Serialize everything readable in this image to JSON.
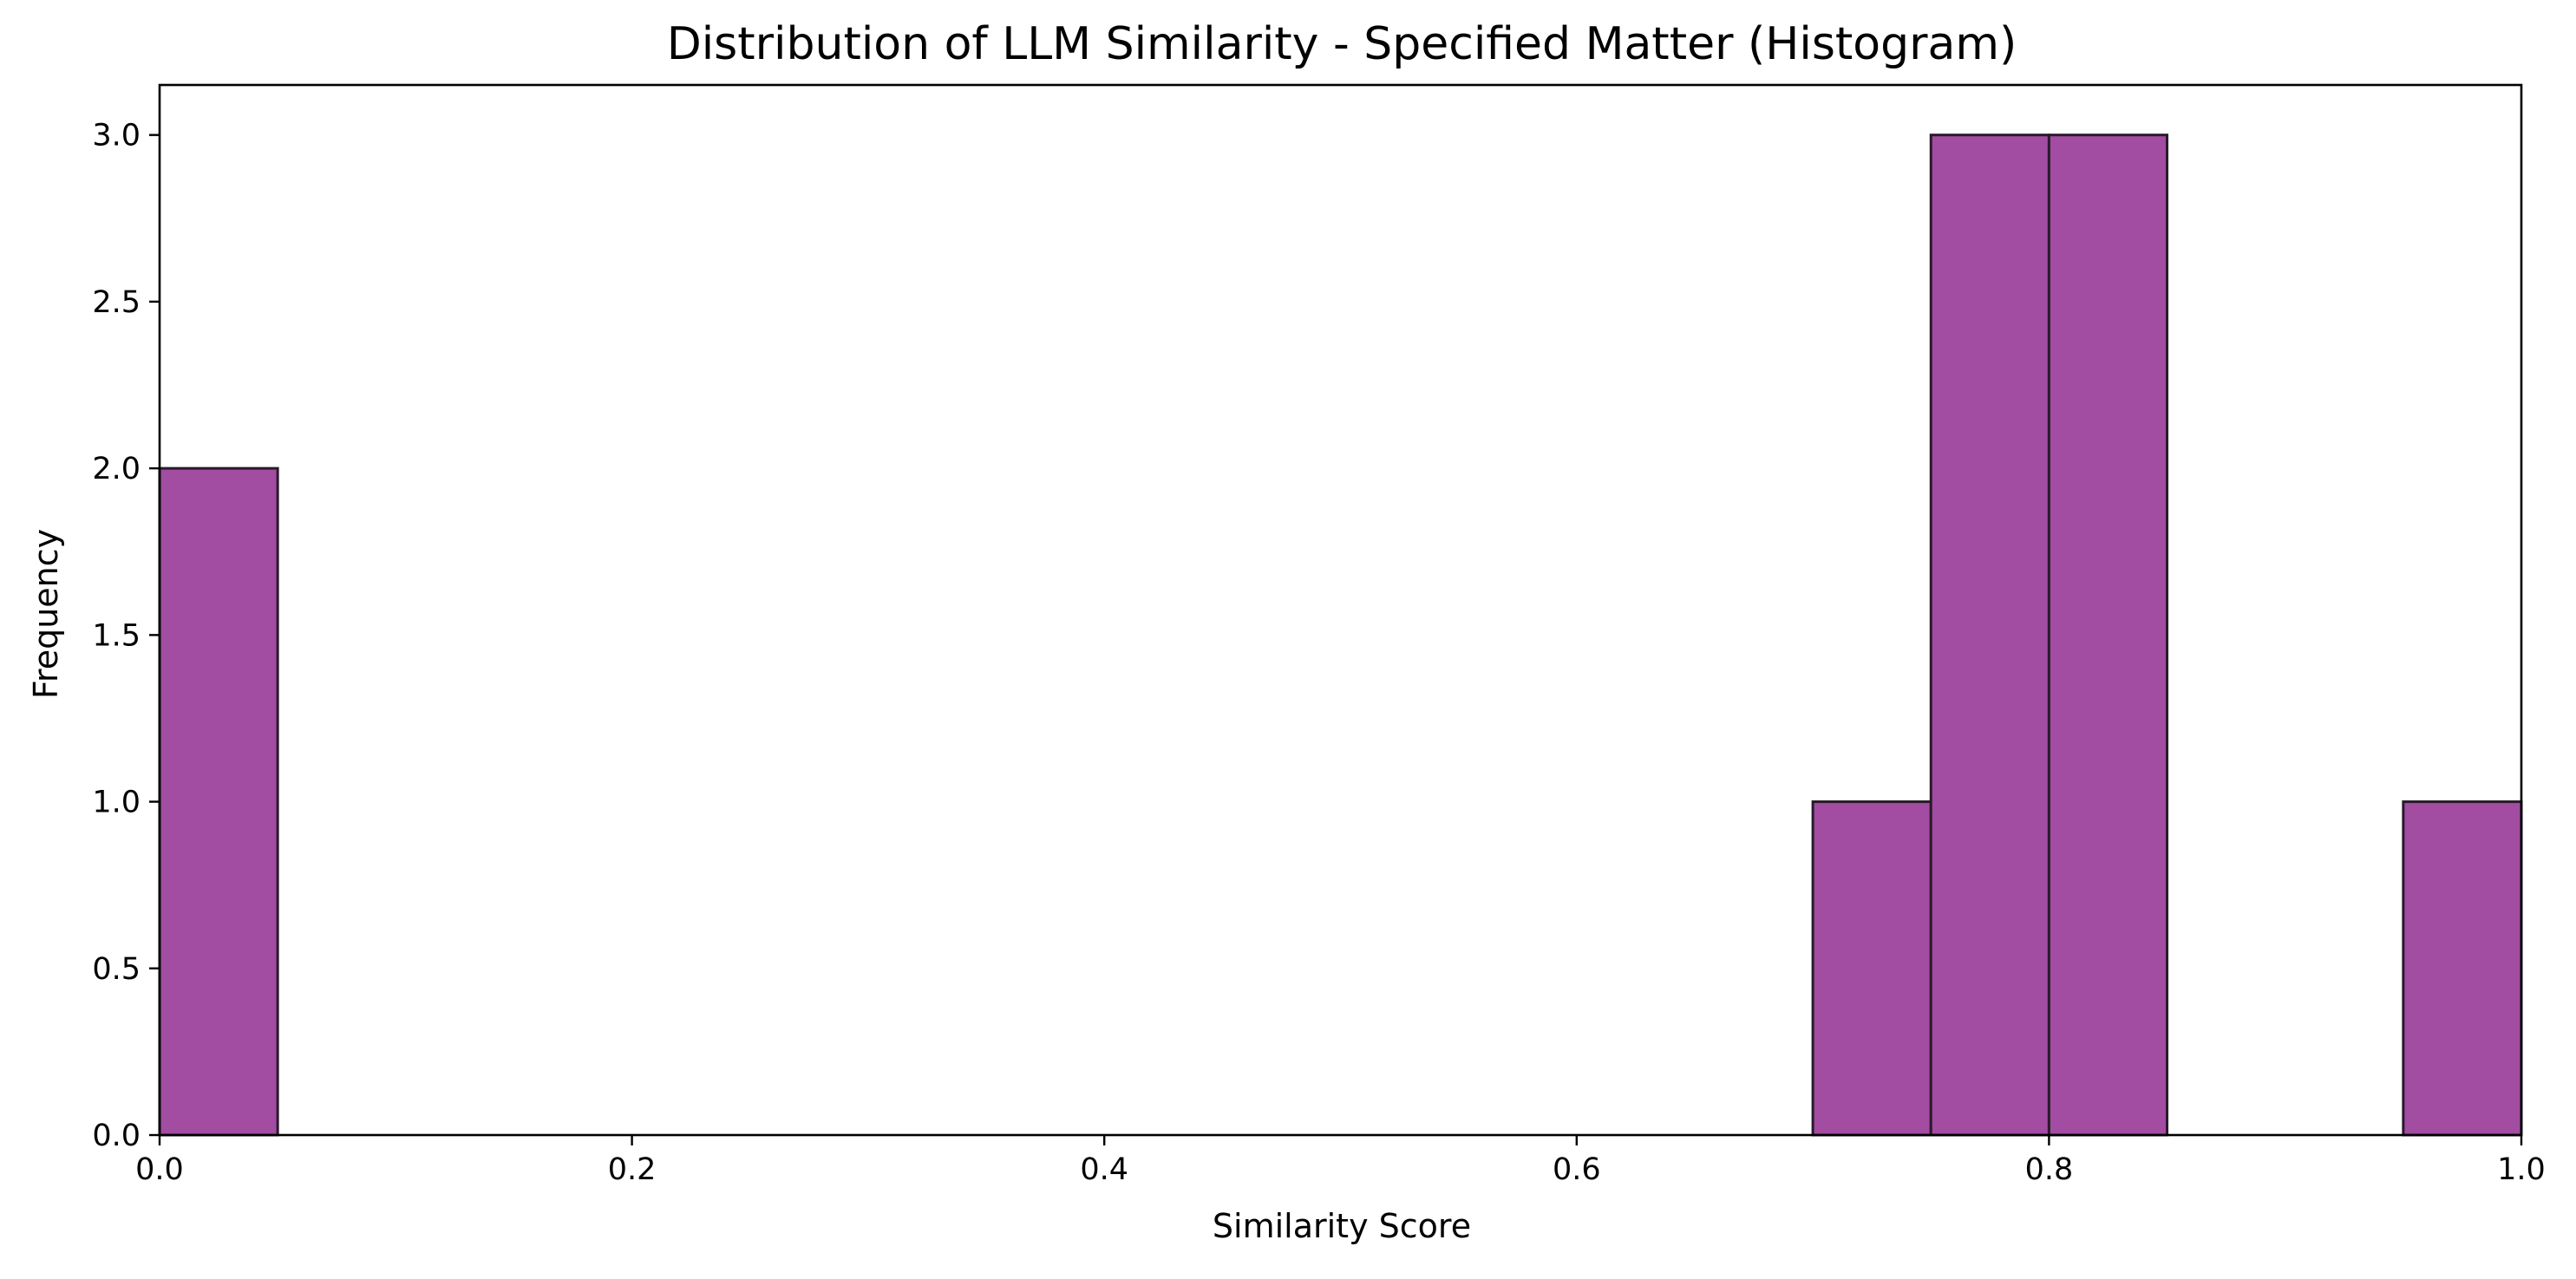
{
  "chart_data": {
    "type": "bar",
    "title": "Distribution of LLM Similarity - Specified Matter (Histogram)",
    "xlabel": "Similarity Score",
    "ylabel": "Frequency",
    "xlim": [
      0.0,
      1.0
    ],
    "ylim": [
      0.0,
      3.15
    ],
    "x_ticks": [
      0.0,
      0.2,
      0.4,
      0.6,
      0.8,
      1.0
    ],
    "x_tick_labels": [
      "0.0",
      "0.2",
      "0.4",
      "0.6",
      "0.8",
      "1.0"
    ],
    "y_ticks": [
      0.0,
      0.5,
      1.0,
      1.5,
      2.0,
      2.5,
      3.0
    ],
    "y_tick_labels": [
      "0.0",
      "0.5",
      "1.0",
      "1.5",
      "2.0",
      "2.5",
      "3.0"
    ],
    "grid": false,
    "bin_width": 0.05,
    "bins": [
      {
        "start": 0.0,
        "end": 0.05,
        "count": 2
      },
      {
        "start": 0.05,
        "end": 0.1,
        "count": 0
      },
      {
        "start": 0.1,
        "end": 0.15,
        "count": 0
      },
      {
        "start": 0.15,
        "end": 0.2,
        "count": 0
      },
      {
        "start": 0.2,
        "end": 0.25,
        "count": 0
      },
      {
        "start": 0.25,
        "end": 0.3,
        "count": 0
      },
      {
        "start": 0.3,
        "end": 0.35,
        "count": 0
      },
      {
        "start": 0.35,
        "end": 0.4,
        "count": 0
      },
      {
        "start": 0.4,
        "end": 0.45,
        "count": 0
      },
      {
        "start": 0.45,
        "end": 0.5,
        "count": 0
      },
      {
        "start": 0.5,
        "end": 0.55,
        "count": 0
      },
      {
        "start": 0.55,
        "end": 0.6,
        "count": 0
      },
      {
        "start": 0.6,
        "end": 0.65,
        "count": 0
      },
      {
        "start": 0.65,
        "end": 0.7,
        "count": 0
      },
      {
        "start": 0.7,
        "end": 0.75,
        "count": 1
      },
      {
        "start": 0.75,
        "end": 0.8,
        "count": 3
      },
      {
        "start": 0.8,
        "end": 0.85,
        "count": 3
      },
      {
        "start": 0.85,
        "end": 0.9,
        "count": 0
      },
      {
        "start": 0.9,
        "end": 0.95,
        "count": 0
      },
      {
        "start": 0.95,
        "end": 1.0,
        "count": 1
      }
    ],
    "bar_color": "#a24ca2",
    "bar_edge_color": "#2a1a2a"
  }
}
